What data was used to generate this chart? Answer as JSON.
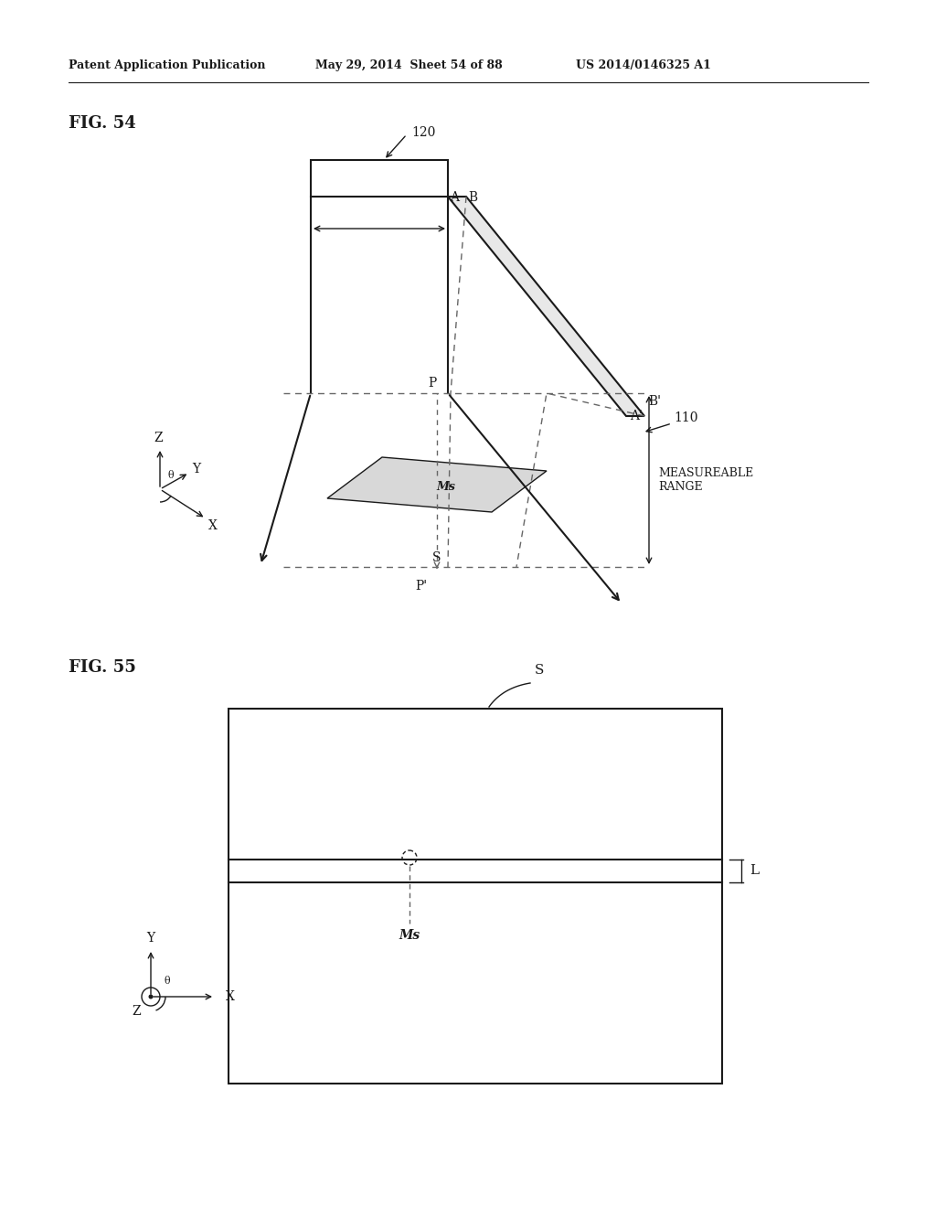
{
  "bg_color": "#ffffff",
  "header_text": "Patent Application Publication",
  "header_date": "May 29, 2014  Sheet 54 of 88",
  "header_patent": "US 2014/0146325 A1",
  "fig54_label": "FIG. 54",
  "fig55_label": "FIG. 55",
  "color_main": "#1a1a1a",
  "color_dashed": "#666666",
  "lw": 1.5,
  "lw_thin": 1.0
}
